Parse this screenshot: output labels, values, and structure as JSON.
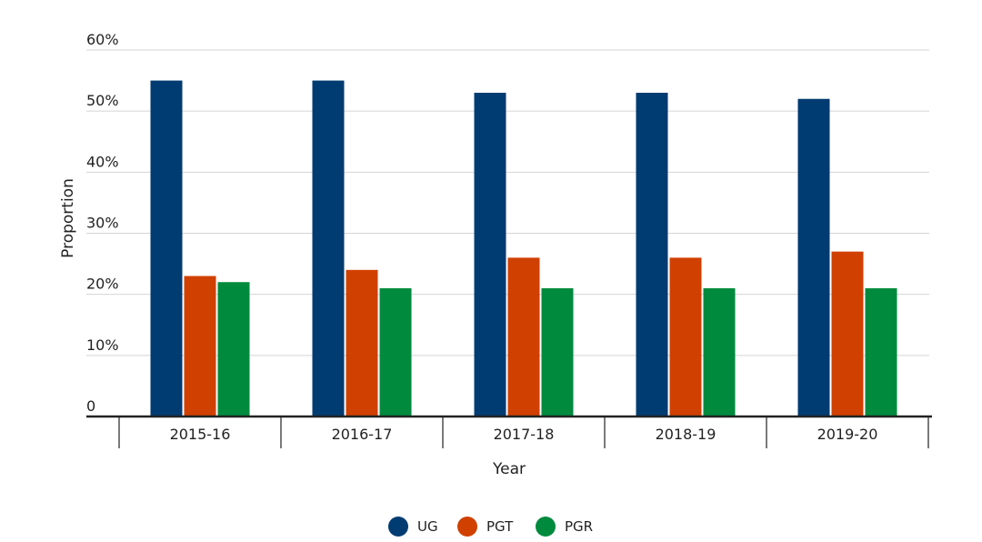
{
  "chart_data": {
    "type": "bar",
    "title": "",
    "xlabel": "Year",
    "ylabel": "Proportion",
    "categories": [
      "2015-16",
      "2016-17",
      "2017-18",
      "2018-19",
      "2019-20"
    ],
    "series": [
      {
        "name": "UG",
        "color": "#003b71",
        "values": [
          55,
          55,
          53,
          53,
          52
        ]
      },
      {
        "name": "PGT",
        "color": "#d04000",
        "values": [
          23,
          24,
          26,
          26,
          27
        ]
      },
      {
        "name": "PGR",
        "color": "#008a3e",
        "values": [
          22,
          21,
          21,
          21,
          21
        ]
      }
    ],
    "ylim": [
      0,
      60
    ],
    "yticks": [
      {
        "value": 0,
        "label": "0"
      },
      {
        "value": 10,
        "label": "10%"
      },
      {
        "value": 20,
        "label": "20%"
      },
      {
        "value": 30,
        "label": "30%"
      },
      {
        "value": 40,
        "label": "40%"
      },
      {
        "value": 50,
        "label": "50%"
      },
      {
        "value": 60,
        "label": "60%"
      }
    ],
    "grid": true,
    "legend_position": "bottom-center"
  }
}
